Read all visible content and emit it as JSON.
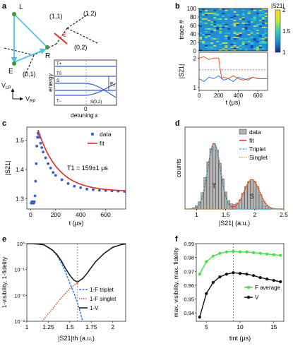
{
  "panels": {
    "a": {
      "letter": "a",
      "points": {
        "L": "L",
        "R": "R",
        "E": "E"
      },
      "regions": {
        "r11": "(1,1)",
        "r12": "(1,2)",
        "r02": "(0,2)",
        "r01": "(0,1)"
      },
      "detuning_symbol": "ε",
      "axis_vlp": "V",
      "axis_vlp_sub": "LP",
      "axis_vrp": "V",
      "axis_vrp_sub": "RP",
      "inset": {
        "ylabel": "energy",
        "xlabel": "detuning ε",
        "zero_tick": "0",
        "levels": [
          "T+",
          "T0",
          "S",
          "T−",
          "S(0,2)"
        ],
        "ez_label": "E",
        "ez_sub": "z"
      }
    },
    "b": {
      "letter": "b",
      "top_ylabel": "trace #",
      "top_yticks": [
        "100",
        "80",
        "60",
        "40",
        "20",
        "0"
      ],
      "cbar_label": "|S21|",
      "cbar_ticks": [
        "2",
        "1.5",
        "1"
      ],
      "bottom_ylabel": "|S21|",
      "bottom_yticks": [
        "2",
        "1"
      ],
      "xticks": [
        "0",
        "200",
        "400",
        "600"
      ],
      "xlabel": "t (μs)"
    },
    "c": {
      "letter": "c",
      "xlabel": "t (μs)",
      "ylabel": "|S21|",
      "legend_data": "data",
      "legend_fit": "fit",
      "annotation": "T1 = 159±1 μs",
      "xticks": [
        "0",
        "200",
        "400",
        "600"
      ],
      "yticks": [
        "1.3",
        "1.4",
        "1.5"
      ]
    },
    "d": {
      "letter": "d",
      "xlabel": "|S21| (a.u.)",
      "ylabel": "counts",
      "legend": [
        "data",
        "fit",
        "Triplet",
        "Singlet"
      ],
      "peak_labels": [
        "T",
        "S"
      ],
      "xticks": [
        "1",
        "1.5",
        "2",
        "2.5"
      ]
    },
    "e": {
      "letter": "e",
      "xlabel": "|S21|th (a.u.)",
      "ylabel": "1-visibility, 1-fidelity",
      "legend": [
        "1-F triplet",
        "1-F singlet",
        "1-V"
      ],
      "xticks": [
        "1",
        "1.25",
        "1.5",
        "1.75",
        "2"
      ],
      "yticks": [
        "10⁰",
        "10⁻¹",
        "10⁻²",
        "10⁻³"
      ]
    },
    "f": {
      "letter": "f",
      "xlabel": "tint (μs)",
      "ylabel": "max. visibility, max. fidelity",
      "legend": [
        "F average",
        "V"
      ],
      "xticks": [
        "5",
        "10",
        "15"
      ],
      "yticks": [
        "0.94",
        "0.95",
        "0.96",
        "0.97",
        "0.98",
        "0.99"
      ]
    }
  },
  "colors": {
    "blue_data": "#2e5fe0",
    "red_fit": "#e8291c",
    "cyan": "#27c9e8",
    "orange": "#e6a21f",
    "green": "#3ce63c",
    "trace_blue": "#2c7be5",
    "trace_red": "#e8531c",
    "dot_green": "#3a9a2a",
    "arrow_blue": "#4fc3e8"
  },
  "chart_data": [
    {
      "panel": "b",
      "type": "line",
      "xlabel": "t (μs)",
      "ylabel": "|S21|",
      "xlim": [
        0,
        700
      ],
      "ylim": [
        0.9,
        2.2
      ],
      "threshold": 1.6,
      "series": [
        {
          "values_desc": "triplet-like trace ~1.3 noisy",
          "x": [
            0,
            50,
            100,
            150,
            200,
            250,
            300,
            350,
            400,
            450,
            500,
            550,
            600,
            650,
            700
          ],
          "values": [
            1.3,
            1.2,
            1.35,
            1.3,
            1.4,
            1.25,
            1.3,
            1.2,
            1.35,
            1.3,
            1.25,
            1.35,
            1.3,
            1.3,
            1.3
          ]
        },
        {
          "values_desc": "singlet-like trace ~2 then decays to ~1.3 at 230 μs",
          "x": [
            0,
            50,
            100,
            150,
            200,
            230,
            250,
            300,
            350,
            400,
            450,
            500,
            550,
            600,
            650,
            700
          ],
          "values": [
            2.0,
            2.05,
            1.95,
            2.0,
            2.0,
            1.3,
            1.35,
            1.3,
            1.4,
            1.3,
            1.25,
            1.3,
            1.35,
            1.3,
            1.3,
            1.3
          ]
        }
      ]
    },
    {
      "panel": "c",
      "type": "scatter",
      "xlabel": "t (μs)",
      "ylabel": "|S21|",
      "xlim": [
        -30,
        760
      ],
      "ylim": [
        1.265,
        1.545
      ],
      "T1_us": 159,
      "series": [
        {
          "name": "data",
          "x": [
            5,
            10,
            15,
            20,
            25,
            30,
            35,
            40,
            45,
            50,
            55,
            60,
            65,
            70,
            80,
            90,
            100,
            120,
            140,
            160,
            180,
            200,
            250,
            300,
            350,
            400,
            450,
            500,
            550,
            600,
            650,
            700,
            750
          ],
          "values": [
            1.285,
            1.29,
            1.285,
            1.29,
            1.285,
            1.29,
            1.31,
            1.36,
            1.42,
            1.48,
            1.51,
            1.525,
            1.52,
            1.51,
            1.49,
            1.475,
            1.46,
            1.44,
            1.42,
            1.405,
            1.39,
            1.38,
            1.365,
            1.352,
            1.343,
            1.338,
            1.333,
            1.331,
            1.329,
            1.328,
            1.327,
            1.326,
            1.325
          ]
        },
        {
          "name": "fit",
          "model": "exponential",
          "A": 1.325,
          "B": 0.21,
          "t0": 60,
          "tau": 159,
          "x_start": 60,
          "x_end": 760
        }
      ]
    },
    {
      "panel": "d",
      "type": "bar",
      "xlabel": "|S21| (a.u.)",
      "ylabel": "counts",
      "xlim": [
        0.8,
        2.5
      ],
      "bins_x": [
        0.9,
        0.95,
        1.0,
        1.05,
        1.1,
        1.15,
        1.2,
        1.25,
        1.3,
        1.35,
        1.4,
        1.45,
        1.5,
        1.55,
        1.6,
        1.65,
        1.7,
        1.75,
        1.8,
        1.85,
        1.9,
        1.95,
        2.0,
        2.05,
        2.1,
        2.15,
        2.2,
        2.25,
        2.3
      ],
      "values": [
        0,
        0.02,
        0.05,
        0.11,
        0.25,
        0.48,
        0.72,
        0.92,
        1.0,
        0.9,
        0.7,
        0.46,
        0.26,
        0.13,
        0.08,
        0.07,
        0.09,
        0.14,
        0.24,
        0.34,
        0.42,
        0.45,
        0.42,
        0.34,
        0.22,
        0.12,
        0.05,
        0.02,
        0
      ],
      "triplet_center": 1.3,
      "singlet_center": 1.95
    },
    {
      "panel": "e",
      "type": "line",
      "xlabel": "|S21|th (a.u.)",
      "ylabel": "1-visibility, 1-fidelity",
      "xlim": [
        1.0,
        2.15
      ],
      "ylim_log": [
        0.001,
        1
      ],
      "threshold": 1.59,
      "series": [
        {
          "name": "1-F triplet",
          "x": [
            1.0,
            1.1,
            1.2,
            1.3,
            1.35,
            1.4,
            1.45,
            1.5,
            1.55,
            1.6,
            1.65
          ],
          "values": [
            1.0,
            0.98,
            0.9,
            0.55,
            0.35,
            0.18,
            0.08,
            0.03,
            0.012,
            0.004,
            0.001
          ]
        },
        {
          "name": "1-F singlet",
          "x": [
            1.18,
            1.25,
            1.3,
            1.35,
            1.4,
            1.45,
            1.5,
            1.55,
            1.6
          ],
          "values": [
            0.001,
            0.002,
            0.003,
            0.005,
            0.008,
            0.012,
            0.018,
            0.025,
            0.032
          ]
        },
        {
          "name": "1-V",
          "x": [
            1.0,
            1.1,
            1.2,
            1.3,
            1.35,
            1.4,
            1.45,
            1.5,
            1.55,
            1.59,
            1.65,
            1.7,
            1.75,
            1.8,
            1.9,
            2.0,
            2.1,
            2.15
          ],
          "values": [
            1.0,
            0.98,
            0.9,
            0.56,
            0.38,
            0.22,
            0.11,
            0.06,
            0.038,
            0.033,
            0.045,
            0.07,
            0.12,
            0.2,
            0.42,
            0.72,
            0.92,
            0.97
          ]
        }
      ]
    },
    {
      "panel": "f",
      "type": "line",
      "xlabel": "tint (μs)",
      "ylabel": "max. visibility, max. fidelity",
      "xlim": [
        3.5,
        16.5
      ],
      "ylim": [
        0.934,
        0.99
      ],
      "series": [
        {
          "name": "F average",
          "x": [
            4,
            5,
            6,
            7,
            8,
            9,
            10,
            11,
            12,
            13,
            14,
            15,
            16
          ],
          "values": [
            0.968,
            0.977,
            0.981,
            0.983,
            0.984,
            0.9845,
            0.984,
            0.984,
            0.9835,
            0.983,
            0.9825,
            0.982,
            0.9815
          ]
        },
        {
          "name": "V",
          "x": [
            4,
            5,
            6,
            7,
            8,
            9,
            10,
            11,
            12,
            13,
            14,
            15,
            16
          ],
          "values": [
            0.937,
            0.954,
            0.962,
            0.966,
            0.968,
            0.969,
            0.9685,
            0.968,
            0.967,
            0.9655,
            0.9645,
            0.9635,
            0.9625
          ]
        }
      ]
    }
  ]
}
